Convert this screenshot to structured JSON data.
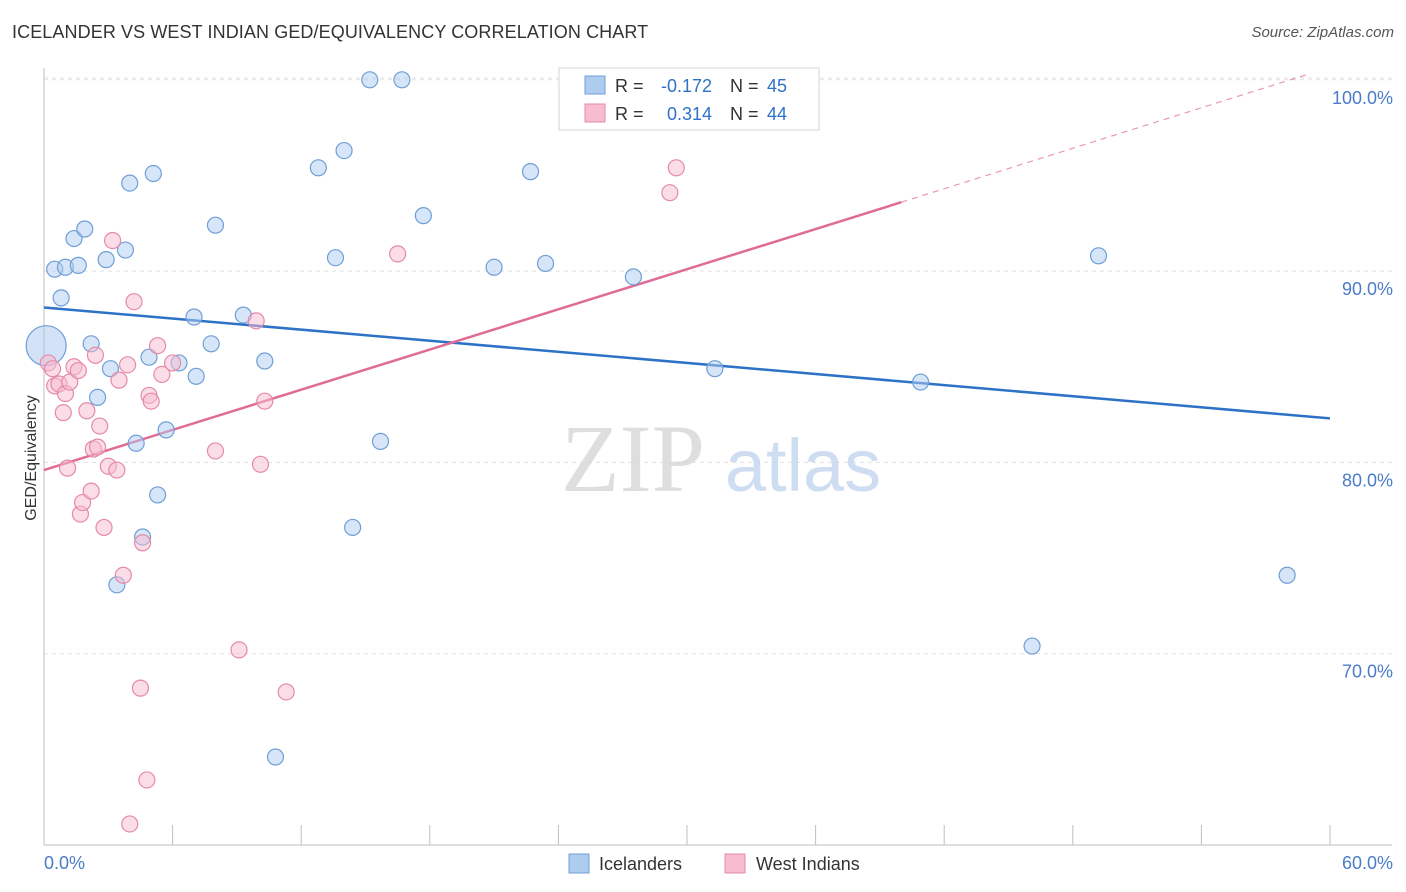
{
  "header": {
    "title": "ICELANDER VS WEST INDIAN GED/EQUIVALENCY CORRELATION CHART",
    "source": "Source: ZipAtlas.com"
  },
  "watermark": {
    "zip": "ZIP",
    "atlas": "atlas"
  },
  "legend_stats": {
    "rows": [
      {
        "r_label": "R =",
        "r_value": "-0.172",
        "n_label": "N =",
        "n_value": "45"
      },
      {
        "r_label": "R =",
        "r_value": "0.314",
        "n_label": "N =",
        "n_value": "44"
      }
    ]
  },
  "colors": {
    "blue_fill": "#aecbf0",
    "blue_stroke": "#6f9fd6",
    "blue_line": "#2e72c8",
    "pink_fill": "#f7bcd0",
    "pink_stroke": "#e58aa9",
    "pink_line": "#e06c96",
    "axis_text": "#4a7cc7",
    "grid": "#e1e1e1"
  },
  "chart_data": {
    "type": "scatter",
    "title": "ICELANDER VS WEST INDIAN GED/EQUIVALENCY CORRELATION CHART",
    "xlabel": "",
    "ylabel": "GED/Equivalency",
    "xlim": [
      0,
      60
    ],
    "ylim": [
      60,
      101.5
    ],
    "x_tick_labels": [
      "0.0%",
      "60.0%"
    ],
    "y_ticks": [
      70,
      80,
      90,
      100
    ],
    "y_tick_labels": [
      "70.0%",
      "80.0%",
      "90.0%",
      "100.0%"
    ],
    "grid": true,
    "legend_position": "bottom",
    "series": [
      {
        "name": "Icelanders",
        "color": "#aecbf0",
        "stroke": "#6f9fd6",
        "r": -0.172,
        "n": 45,
        "trend": {
          "x": [
            0,
            60
          ],
          "y": [
            88.1,
            82.3
          ],
          "dashed_to": null
        },
        "points": [
          [
            0.1,
            86.1,
            "large"
          ],
          [
            0.5,
            90.1
          ],
          [
            0.8,
            88.6
          ],
          [
            1.0,
            90.2
          ],
          [
            1.4,
            91.7
          ],
          [
            1.6,
            90.3
          ],
          [
            1.9,
            92.2
          ],
          [
            2.2,
            86.2
          ],
          [
            2.5,
            83.4
          ],
          [
            2.9,
            90.6
          ],
          [
            3.1,
            84.9
          ],
          [
            3.4,
            73.6
          ],
          [
            3.8,
            91.1
          ],
          [
            4.0,
            94.6
          ],
          [
            4.3,
            81.0
          ],
          [
            4.6,
            76.1
          ],
          [
            4.9,
            85.5
          ],
          [
            5.1,
            95.1
          ],
          [
            5.3,
            78.3
          ],
          [
            5.7,
            81.7
          ],
          [
            6.3,
            85.2
          ],
          [
            7.0,
            87.6
          ],
          [
            7.1,
            84.5
          ],
          [
            7.8,
            86.2
          ],
          [
            8.0,
            92.4
          ],
          [
            9.3,
            87.7
          ],
          [
            10.3,
            85.3
          ],
          [
            10.8,
            64.6
          ],
          [
            12.8,
            95.4
          ],
          [
            13.6,
            90.7
          ],
          [
            14.0,
            96.3
          ],
          [
            14.4,
            76.6
          ],
          [
            15.2,
            100.0
          ],
          [
            15.7,
            81.1
          ],
          [
            16.7,
            100.0
          ],
          [
            17.7,
            92.9
          ],
          [
            21.0,
            90.2
          ],
          [
            22.7,
            95.2
          ],
          [
            23.4,
            90.4
          ],
          [
            27.5,
            89.7
          ],
          [
            31.3,
            84.9
          ],
          [
            40.9,
            84.2
          ],
          [
            46.1,
            70.4
          ],
          [
            49.2,
            90.8
          ],
          [
            58.0,
            74.1
          ]
        ]
      },
      {
        "name": "West Indians",
        "color": "#f7bcd0",
        "stroke": "#e58aa9",
        "r": 0.314,
        "n": 44,
        "trend": {
          "x": [
            0,
            40
          ],
          "y": [
            79.6,
            93.6
          ],
          "dashed_to": [
            59,
            100.3
          ]
        },
        "points": [
          [
            0.2,
            85.2
          ],
          [
            0.4,
            84.9
          ],
          [
            0.5,
            84.0
          ],
          [
            0.7,
            84.1
          ],
          [
            0.9,
            82.6
          ],
          [
            1.0,
            83.6
          ],
          [
            1.1,
            79.7
          ],
          [
            1.2,
            84.2
          ],
          [
            1.4,
            85.0
          ],
          [
            1.6,
            84.8
          ],
          [
            1.7,
            77.3
          ],
          [
            1.8,
            77.9
          ],
          [
            2.0,
            82.7
          ],
          [
            2.2,
            78.5
          ],
          [
            2.3,
            80.7
          ],
          [
            2.5,
            80.8
          ],
          [
            2.4,
            85.6
          ],
          [
            2.6,
            81.9
          ],
          [
            2.8,
            76.6
          ],
          [
            3.0,
            79.8
          ],
          [
            3.2,
            91.6
          ],
          [
            3.4,
            79.6
          ],
          [
            3.5,
            84.3
          ],
          [
            3.7,
            74.1
          ],
          [
            3.9,
            85.1
          ],
          [
            4.2,
            88.4
          ],
          [
            4.5,
            68.2
          ],
          [
            4.6,
            75.8
          ],
          [
            4.8,
            63.4
          ],
          [
            4.9,
            83.5
          ],
          [
            5.0,
            83.2
          ],
          [
            5.3,
            86.1
          ],
          [
            5.5,
            84.6
          ],
          [
            6.0,
            85.2
          ],
          [
            4.0,
            61.1
          ],
          [
            8.0,
            80.6
          ],
          [
            9.1,
            70.2
          ],
          [
            9.9,
            87.4
          ],
          [
            10.1,
            79.9
          ],
          [
            10.3,
            83.2
          ],
          [
            11.3,
            68.0
          ],
          [
            16.5,
            90.9
          ],
          [
            29.2,
            94.1
          ],
          [
            29.5,
            95.4
          ]
        ]
      }
    ]
  }
}
